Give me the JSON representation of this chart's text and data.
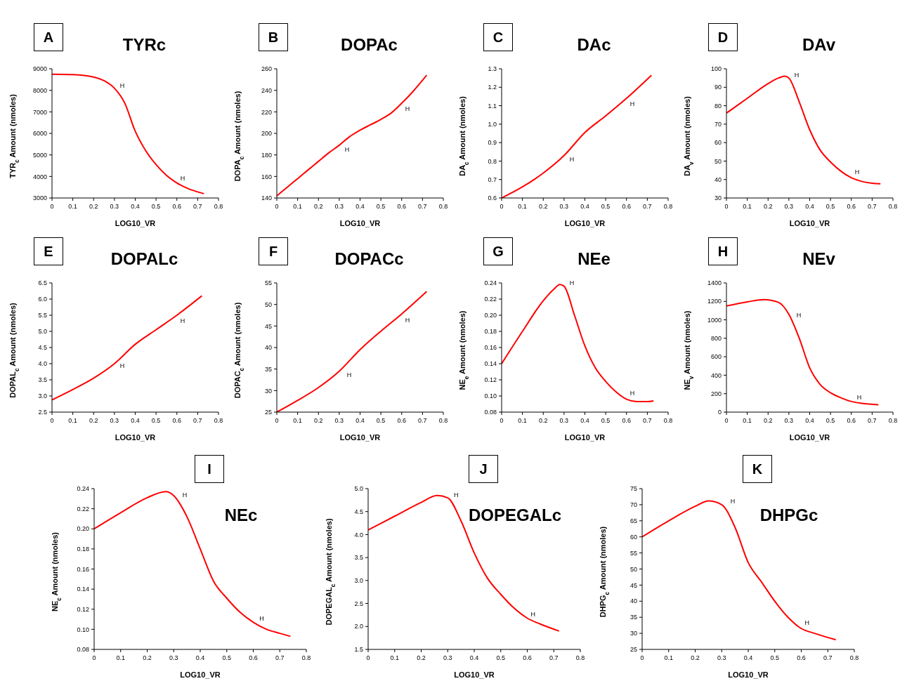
{
  "chart_data": [
    {
      "type": "line",
      "title": "TYRc",
      "xlabel": "LOG10_VR",
      "ylabel": "TYR$_{c}$  Amount (nmoles)",
      "color": "#ff0000",
      "x": [
        0,
        0.1,
        0.2,
        0.25,
        0.3,
        0.35,
        0.4,
        0.45,
        0.5,
        0.55,
        0.6,
        0.65,
        0.7,
        0.73
      ],
      "values": [
        8750,
        8730,
        8620,
        8450,
        8100,
        7400,
        6100,
        5200,
        4550,
        4050,
        3700,
        3450,
        3280,
        3200
      ],
      "xlim": [
        0,
        0.8
      ],
      "xticks": [
        0,
        0.1,
        0.2,
        0.3,
        0.4,
        0.5,
        0.6,
        0.7,
        0.8
      ],
      "ylim": [
        3000,
        9000
      ],
      "yticks": [
        3000,
        4000,
        5000,
        6000,
        7000,
        8000,
        9000
      ],
      "annotations": [
        "A",
        {
          "text": "H",
          "x": 0.31,
          "y": 8000
        },
        {
          "text": "H",
          "x": 0.6,
          "y": 3700
        }
      ]
    },
    {
      "type": "line",
      "title": "DOPAc",
      "xlabel": "LOG10_VR",
      "ylabel": "DOPA$_{c}$  Amount (nmoles)",
      "color": "#ff0000",
      "x": [
        0,
        0.05,
        0.1,
        0.15,
        0.2,
        0.25,
        0.3,
        0.35,
        0.4,
        0.45,
        0.5,
        0.55,
        0.6,
        0.65,
        0.72
      ],
      "values": [
        142,
        150,
        158,
        166,
        174,
        182,
        189,
        197,
        203,
        208,
        213,
        219,
        228,
        238,
        254
      ],
      "xlim": [
        0,
        0.8
      ],
      "xticks": [
        0,
        0.1,
        0.2,
        0.3,
        0.4,
        0.5,
        0.6,
        0.7,
        0.8
      ],
      "ylim": [
        140,
        260
      ],
      "yticks": [
        140,
        160,
        180,
        200,
        220,
        240,
        260
      ],
      "annotations": [
        "B",
        {
          "text": "H",
          "x": 0.31,
          "y": 190
        },
        {
          "text": "H",
          "x": 0.6,
          "y": 228
        }
      ]
    },
    {
      "type": "line",
      "title": "DAc",
      "xlabel": "LOG10_VR",
      "ylabel": "DA$_{c}$  Amount (nmoles)",
      "color": "#ff0000",
      "x": [
        0,
        0.1,
        0.2,
        0.3,
        0.4,
        0.5,
        0.6,
        0.72
      ],
      "values": [
        0.6,
        0.66,
        0.735,
        0.83,
        0.955,
        1.045,
        1.14,
        1.265
      ],
      "xlim": [
        0,
        0.8
      ],
      "xticks": [
        0,
        0.1,
        0.2,
        0.3,
        0.4,
        0.5,
        0.6,
        0.7,
        0.8
      ],
      "ylim": [
        0.6,
        1.3
      ],
      "yticks": [
        0.6,
        0.7,
        0.8,
        0.9,
        {
          "value": 1,
          "label": "1.0"
        },
        1.1,
        1.2,
        1.3
      ],
      "annotations": [
        "C",
        {
          "text": "H",
          "x": 0.31,
          "y": 0.84
        },
        {
          "text": "H",
          "x": 0.6,
          "y": 1.14
        }
      ]
    },
    {
      "type": "line",
      "title": "DAv",
      "xlabel": "LOG10_VR",
      "ylabel": "DA$_{v}$  Amount (nmoles)",
      "color": "#ff0000",
      "x": [
        0,
        0.1,
        0.2,
        0.25,
        0.28,
        0.3,
        0.35,
        0.4,
        0.45,
        0.5,
        0.55,
        0.6,
        0.65,
        0.7,
        0.74
      ],
      "values": [
        76,
        84,
        92,
        95,
        96,
        95,
        82,
        67,
        56,
        49.5,
        44.5,
        41,
        39,
        38,
        37.7
      ],
      "xlim": [
        0,
        0.8
      ],
      "xticks": [
        0,
        0.1,
        0.2,
        0.3,
        0.4,
        0.5,
        0.6,
        0.7,
        0.8
      ],
      "ylim": [
        30,
        100
      ],
      "yticks": [
        30,
        40,
        50,
        60,
        70,
        80,
        90,
        100
      ],
      "annotations": [
        "D",
        {
          "text": "H",
          "x": 0.31,
          "y": 94
        },
        {
          "text": "H",
          "x": 0.6,
          "y": 41.5
        }
      ]
    },
    {
      "type": "line",
      "title": "DOPALc",
      "xlabel": "LOG10_VR",
      "ylabel": "DOPAL$_{c}$  Amount (nmoles)",
      "color": "#ff0000",
      "x": [
        0,
        0.1,
        0.2,
        0.3,
        0.4,
        0.5,
        0.6,
        0.72
      ],
      "values": [
        2.88,
        3.2,
        3.55,
        4.0,
        4.6,
        5.05,
        5.5,
        6.1
      ],
      "xlim": [
        0,
        0.8
      ],
      "xticks": [
        0,
        0.1,
        0.2,
        0.3,
        0.4,
        0.5,
        0.6,
        0.7,
        0.8
      ],
      "ylim": [
        2.5,
        6.5
      ],
      "yticks": [
        2.5,
        {
          "value": 3,
          "label": "3.0"
        },
        3.5,
        {
          "value": 4,
          "label": "4.0"
        },
        4.5,
        {
          "value": 5,
          "label": "5.0"
        },
        5.5,
        {
          "value": 6,
          "label": "6.0"
        },
        6.5
      ],
      "annotations": [
        "E",
        {
          "text": "H",
          "x": 0.31,
          "y": 4.1
        },
        {
          "text": "H",
          "x": 0.6,
          "y": 5.5
        }
      ]
    },
    {
      "type": "line",
      "title": "DOPACc",
      "xlabel": "LOG10_VR",
      "ylabel": "DOPAC$_{c}$  Amount (nmoles)",
      "color": "#ff0000",
      "x": [
        0,
        0.1,
        0.2,
        0.3,
        0.4,
        0.5,
        0.6,
        0.72
      ],
      "values": [
        25,
        27.7,
        30.7,
        34.5,
        39.5,
        43.8,
        47.8,
        53
      ],
      "xlim": [
        0,
        0.8
      ],
      "xticks": [
        0,
        0.1,
        0.2,
        0.3,
        0.4,
        0.5,
        0.6,
        0.7,
        0.8
      ],
      "ylim": [
        25,
        55
      ],
      "yticks": [
        25,
        30,
        35,
        40,
        45,
        50,
        55
      ],
      "annotations": [
        "F",
        {
          "text": "H",
          "x": 0.32,
          "y": 35
        },
        {
          "text": "H",
          "x": 0.6,
          "y": 47.7
        }
      ]
    },
    {
      "type": "line",
      "title": "NEe",
      "xlabel": "LOG10_VR",
      "ylabel": "NE$_{e}$  Amount (nmoles)",
      "color": "#ff0000",
      "x": [
        0,
        0.1,
        0.2,
        0.25,
        0.28,
        0.3,
        0.35,
        0.4,
        0.45,
        0.5,
        0.55,
        0.6,
        0.65,
        0.7,
        0.73
      ],
      "values": [
        0.14,
        0.18,
        0.218,
        0.232,
        0.238,
        0.236,
        0.2,
        0.162,
        0.135,
        0.118,
        0.105,
        0.096,
        0.093,
        0.093,
        0.094
      ],
      "xlim": [
        0,
        0.8
      ],
      "xticks": [
        0,
        0.1,
        0.2,
        0.3,
        0.4,
        0.5,
        0.6,
        0.7,
        0.8
      ],
      "ylim": [
        0.08,
        0.24
      ],
      "yticks": [
        0.08,
        {
          "value": 0.1,
          "label": "0.10"
        },
        0.12,
        0.14,
        0.16,
        0.18,
        {
          "value": 0.2,
          "label": "0.20"
        },
        0.22,
        0.24
      ],
      "annotations": [
        "G",
        {
          "text": "H",
          "x": 0.31,
          "y": 0.234
        },
        {
          "text": "H",
          "x": 0.6,
          "y": 0.097
        }
      ]
    },
    {
      "type": "line",
      "title": "NEv",
      "xlabel": "LOG10_VR",
      "ylabel": "NE$_{v}$  Amount (nmoles)",
      "color": "#ff0000",
      "x": [
        0,
        0.1,
        0.18,
        0.25,
        0.3,
        0.35,
        0.4,
        0.45,
        0.5,
        0.55,
        0.6,
        0.65,
        0.73
      ],
      "values": [
        1150,
        1195,
        1220,
        1190,
        1060,
        800,
        480,
        300,
        210,
        155,
        115,
        95,
        80
      ],
      "xlim": [
        0,
        0.8
      ],
      "xticks": [
        0,
        0.1,
        0.2,
        0.3,
        0.4,
        0.5,
        0.6,
        0.7,
        0.8
      ],
      "ylim": [
        0,
        1400
      ],
      "yticks": [
        0,
        200,
        400,
        600,
        800,
        1000,
        1200,
        1400
      ],
      "annotations": [
        "H",
        {
          "text": "H",
          "x": 0.32,
          "y": 1000
        },
        {
          "text": "H",
          "x": 0.61,
          "y": 110
        }
      ]
    },
    {
      "type": "line",
      "title": "NEc",
      "xlabel": "LOG10_VR",
      "ylabel": "NE$_{c}$  Amount (nmoles)",
      "color": "#ff0000",
      "x": [
        0,
        0.1,
        0.2,
        0.27,
        0.3,
        0.35,
        0.4,
        0.45,
        0.5,
        0.55,
        0.6,
        0.65,
        0.7,
        0.74
      ],
      "values": [
        0.2,
        0.216,
        0.231,
        0.237,
        0.233,
        0.212,
        0.18,
        0.148,
        0.131,
        0.117,
        0.107,
        0.1,
        0.096,
        0.093
      ],
      "xlim": [
        0,
        0.8
      ],
      "xticks": [
        0,
        0.1,
        0.2,
        0.3,
        0.4,
        0.5,
        0.6,
        0.7,
        0.8
      ],
      "ylim": [
        0.08,
        0.24
      ],
      "yticks": [
        0.08,
        {
          "value": 0.1,
          "label": "0.10"
        },
        0.12,
        0.14,
        0.16,
        0.18,
        {
          "value": 0.2,
          "label": "0.20"
        },
        0.22,
        0.24
      ],
      "annotations": [
        "I",
        {
          "text": "H",
          "x": 0.32,
          "y": 0.229
        },
        {
          "text": "H",
          "x": 0.61,
          "y": 0.106
        }
      ]
    },
    {
      "type": "line",
      "title": "DOPEGALc",
      "xlabel": "LOG10_VR",
      "ylabel": "DOPEGAL$_{c}$  Amount (nmoles)",
      "color": "#ff0000",
      "x": [
        0,
        0.1,
        0.2,
        0.26,
        0.3,
        0.35,
        0.4,
        0.45,
        0.5,
        0.55,
        0.6,
        0.65,
        0.72
      ],
      "values": [
        4.1,
        4.4,
        4.7,
        4.85,
        4.8,
        4.3,
        3.6,
        3.05,
        2.7,
        2.4,
        2.18,
        2.05,
        1.9
      ],
      "xlim": [
        0,
        0.8
      ],
      "xticks": [
        0,
        0.1,
        0.2,
        0.3,
        0.4,
        0.5,
        0.6,
        0.7,
        0.8
      ],
      "ylim": [
        1.5,
        5
      ],
      "yticks": [
        1.5,
        {
          "value": 2,
          "label": "2.0"
        },
        2.5,
        {
          "value": 3,
          "label": "3.0"
        },
        3.5,
        {
          "value": 4,
          "label": "4.0"
        },
        4.5,
        {
          "value": 5,
          "label": "5.0"
        }
      ],
      "annotations": [
        "J",
        {
          "text": "H",
          "x": 0.31,
          "y": 4.75
        },
        {
          "text": "H",
          "x": 0.6,
          "y": 2.15
        }
      ]
    },
    {
      "type": "line",
      "title": "DHPGc",
      "xlabel": "LOG10_VR",
      "ylabel": "DHPG$_{c}$  Amount (nmoles)",
      "color": "#ff0000",
      "x": [
        0,
        0.1,
        0.2,
        0.25,
        0.3,
        0.35,
        0.4,
        0.45,
        0.5,
        0.55,
        0.6,
        0.65,
        0.73
      ],
      "values": [
        60,
        65,
        69.5,
        71.2,
        70,
        63,
        52,
        46,
        40,
        35,
        31.5,
        30,
        28
      ],
      "xlim": [
        0,
        0.8
      ],
      "xticks": [
        0,
        0.1,
        0.2,
        0.3,
        0.4,
        0.5,
        0.6,
        0.7,
        0.8
      ],
      "ylim": [
        25,
        75
      ],
      "yticks": [
        25,
        30,
        35,
        40,
        45,
        50,
        55,
        60,
        65,
        70,
        75
      ],
      "annotations": [
        "K",
        {
          "text": "H",
          "x": 0.32,
          "y": 69.5
        },
        {
          "text": "H",
          "x": 0.6,
          "y": 31.8
        }
      ]
    }
  ]
}
